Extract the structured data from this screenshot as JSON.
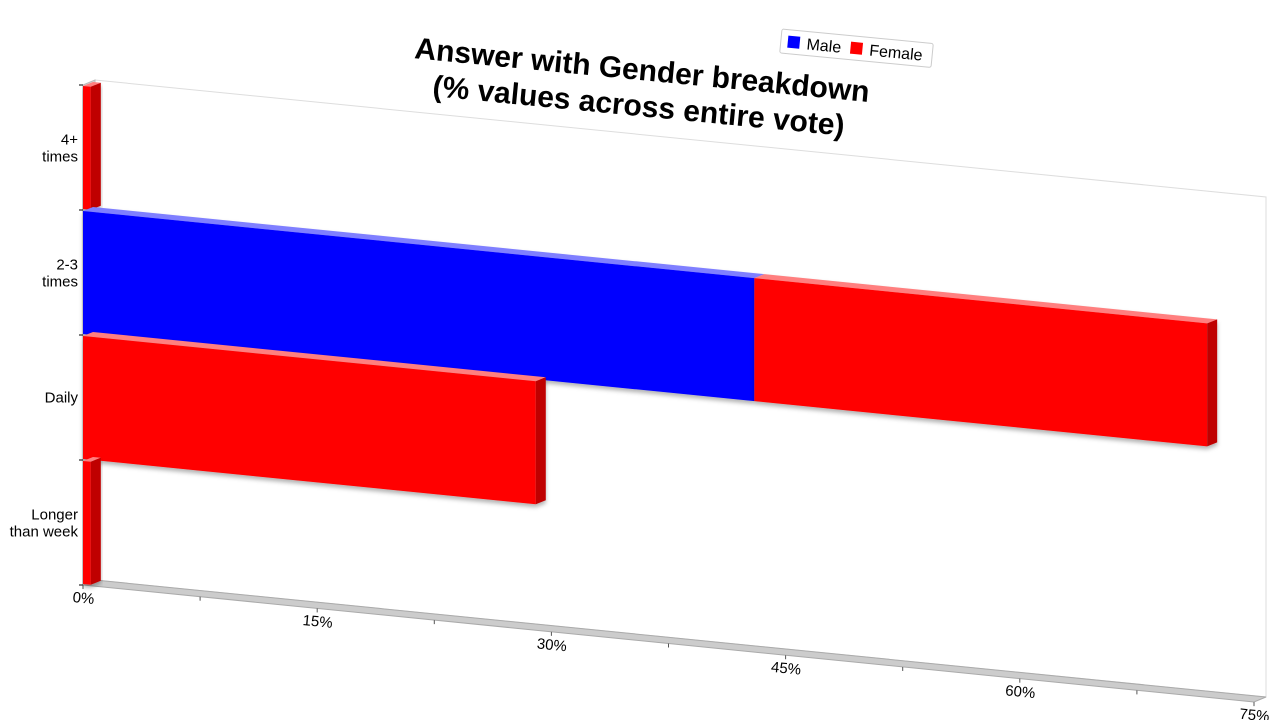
{
  "chart_data": {
    "type": "bar",
    "orientation": "horizontal",
    "stacked": true,
    "title": [
      "Answer with Gender breakdown",
      "(% values across entire vote)"
    ],
    "categories": [
      {
        "lines": [
          "4+",
          "times"
        ]
      },
      {
        "lines": [
          "2-3",
          "times"
        ]
      },
      {
        "lines": [
          "Daily"
        ]
      },
      {
        "lines": [
          "Longer",
          "than week"
        ]
      }
    ],
    "series": [
      {
        "name": "Male",
        "color": "#0000ff",
        "values": [
          0,
          43,
          0,
          0
        ]
      },
      {
        "name": "Female",
        "color": "#ff0000",
        "values": [
          0.5,
          29,
          29,
          0.5
        ]
      }
    ],
    "x_ticks": [
      "0%",
      "15%",
      "30%",
      "45%",
      "60%",
      "75%"
    ],
    "x_tick_values": [
      0,
      15,
      30,
      45,
      60,
      75
    ],
    "xlim": [
      0,
      75
    ],
    "legend_position": "top-right",
    "grid": false
  }
}
